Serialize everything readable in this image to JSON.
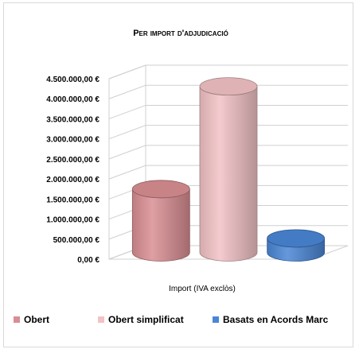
{
  "chart_data": {
    "type": "bar",
    "title": "Per import d'adjudicació",
    "categories": [
      "Import (IVA exclòs)"
    ],
    "series": [
      {
        "name": "Obert",
        "values": [
          1580000
        ],
        "color": "#d98e93"
      },
      {
        "name": "Obert simplificat",
        "values": [
          4140000
        ],
        "color": "#f2c2c5"
      },
      {
        "name": "Basats en Acords Marc",
        "values": [
          350000
        ],
        "color": "#4a86d6"
      }
    ],
    "ylim": [
      0,
      4500000
    ],
    "yticks": [
      0,
      500000,
      1000000,
      1500000,
      2000000,
      2500000,
      3000000,
      3500000,
      4000000,
      4500000
    ],
    "ytick_labels": [
      "0,00 €",
      "500.000,00 €",
      "1.000.000,00 €",
      "1.500.000,00 €",
      "2.000.000,00 €",
      "2.500.000,00 €",
      "3.000.000,00 €",
      "3.500.000,00 €",
      "4.000.000,00 €",
      "4.500.000,00 €"
    ],
    "grid": true,
    "legend": "bottom",
    "shape": "cylinder-3d"
  }
}
